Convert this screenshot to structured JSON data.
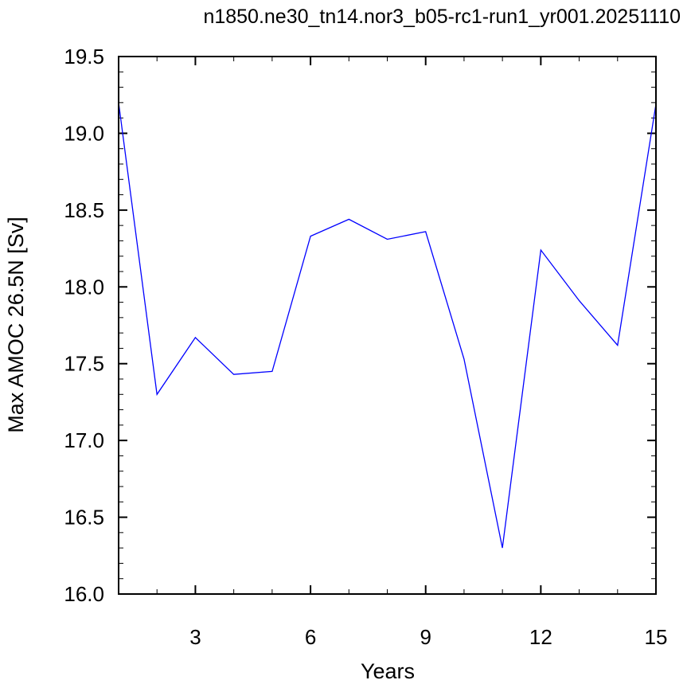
{
  "chart_data": {
    "type": "line",
    "title": "n1850.ne30_tn14.nor3_b05-rc1-run1_yr001.20251110",
    "xlabel": "Years",
    "ylabel": "Max AMOC 26.5N [Sv]",
    "xlim": [
      1,
      15
    ],
    "ylim": [
      16.0,
      19.5
    ],
    "xticks": [
      3,
      6,
      9,
      12,
      15
    ],
    "xtick_labels": [
      "3",
      "6",
      "9",
      "12",
      "15"
    ],
    "yticks": [
      16.0,
      16.5,
      17.0,
      17.5,
      18.0,
      18.5,
      19.0,
      19.5
    ],
    "ytick_labels": [
      "16.0",
      "16.5",
      "17.0",
      "17.5",
      "18.0",
      "18.5",
      "19.0",
      "19.5"
    ],
    "grid": false,
    "line_color": "#0000ff",
    "series": [
      {
        "x": [
          1,
          2,
          3,
          4,
          5,
          6,
          7,
          8,
          9,
          10,
          11,
          12,
          13,
          14,
          15
        ],
        "values": [
          19.2,
          17.3,
          17.67,
          17.43,
          17.45,
          18.33,
          18.44,
          18.31,
          18.36,
          17.53,
          16.3,
          18.24,
          17.91,
          17.62,
          19.19
        ]
      }
    ]
  }
}
